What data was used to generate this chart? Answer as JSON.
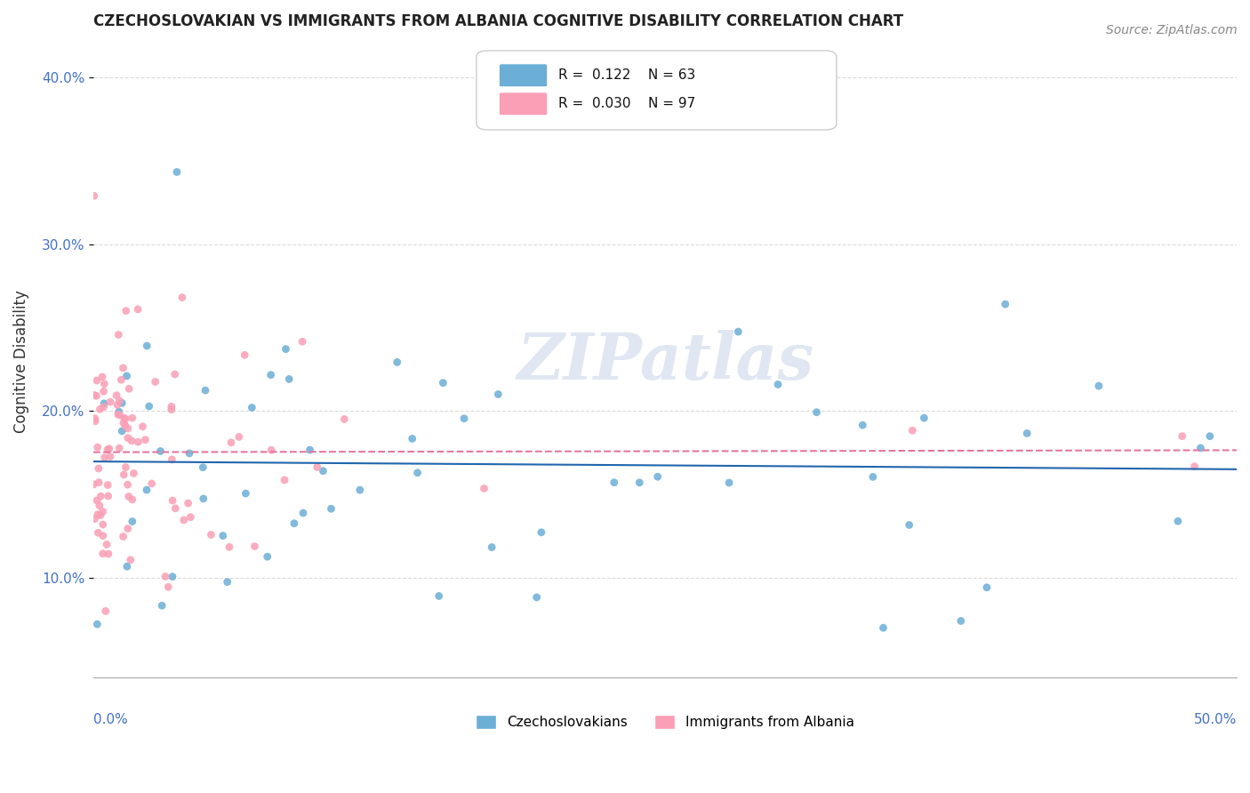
{
  "title": "CZECHOSLOVAKIAN VS IMMIGRANTS FROM ALBANIA COGNITIVE DISABILITY CORRELATION CHART",
  "source": "Source: ZipAtlas.com",
  "ylabel": "Cognitive Disability",
  "xlim": [
    0.0,
    0.5
  ],
  "ylim": [
    0.04,
    0.42
  ],
  "yticks": [
    0.1,
    0.2,
    0.3,
    0.4
  ],
  "ytick_labels": [
    "10.0%",
    "20.0%",
    "30.0%",
    "40.0%"
  ],
  "blue_color": "#6baed6",
  "pink_color": "#fa9fb5",
  "blue_line_color": "#2166ac",
  "pink_line_color": "#e377a0",
  "watermark": "ZIPatlas",
  "background_color": "#ffffff",
  "grid_color": "#cccccc"
}
